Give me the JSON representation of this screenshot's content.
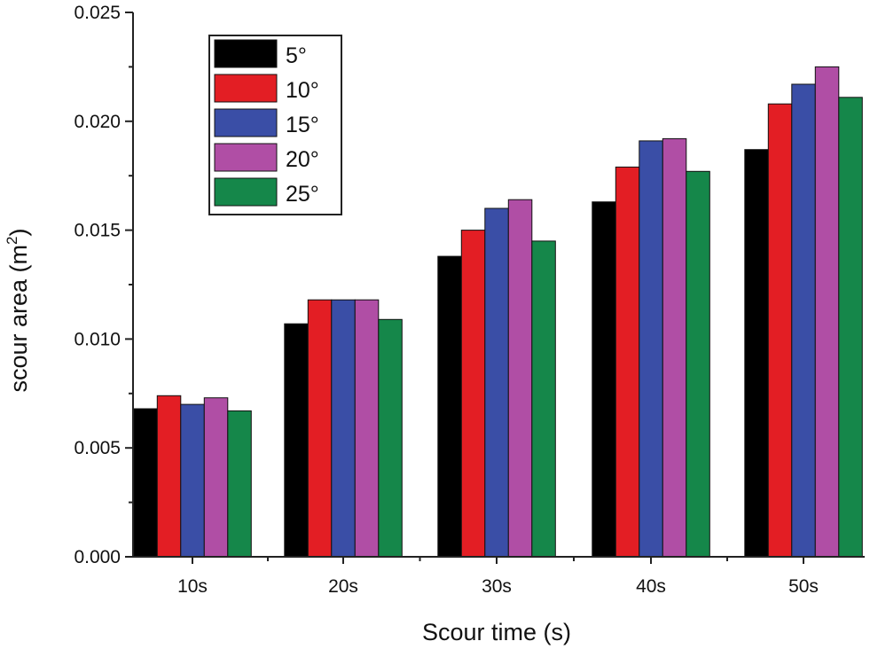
{
  "chart_data": {
    "type": "bar",
    "title": "",
    "xlabel": "Scour time (s)",
    "ylabel": "scour area (m",
    "ylabel_sup": "2",
    "ylabel_close": ")",
    "ylim": [
      0,
      0.025
    ],
    "yticks": [
      "0.000",
      "0.005",
      "0.010",
      "0.015",
      "0.020",
      "0.025"
    ],
    "categories": [
      "10s",
      "20s",
      "30s",
      "40s",
      "50s"
    ],
    "legend_position": "top-left",
    "series": [
      {
        "name": "5°",
        "color": "#000000",
        "values": [
          0.0068,
          0.0107,
          0.0138,
          0.0163,
          0.0187
        ]
      },
      {
        "name": "10°",
        "color": "#e31e24",
        "values": [
          0.0074,
          0.0118,
          0.015,
          0.0179,
          0.0208
        ]
      },
      {
        "name": "15°",
        "color": "#3a4ea6",
        "values": [
          0.007,
          0.0118,
          0.016,
          0.0191,
          0.0217
        ]
      },
      {
        "name": "20°",
        "color": "#b04ea5",
        "values": [
          0.0073,
          0.0118,
          0.0164,
          0.0192,
          0.0225
        ]
      },
      {
        "name": "25°",
        "color": "#15874a",
        "values": [
          0.0067,
          0.0109,
          0.0145,
          0.0177,
          0.0211
        ]
      }
    ]
  }
}
